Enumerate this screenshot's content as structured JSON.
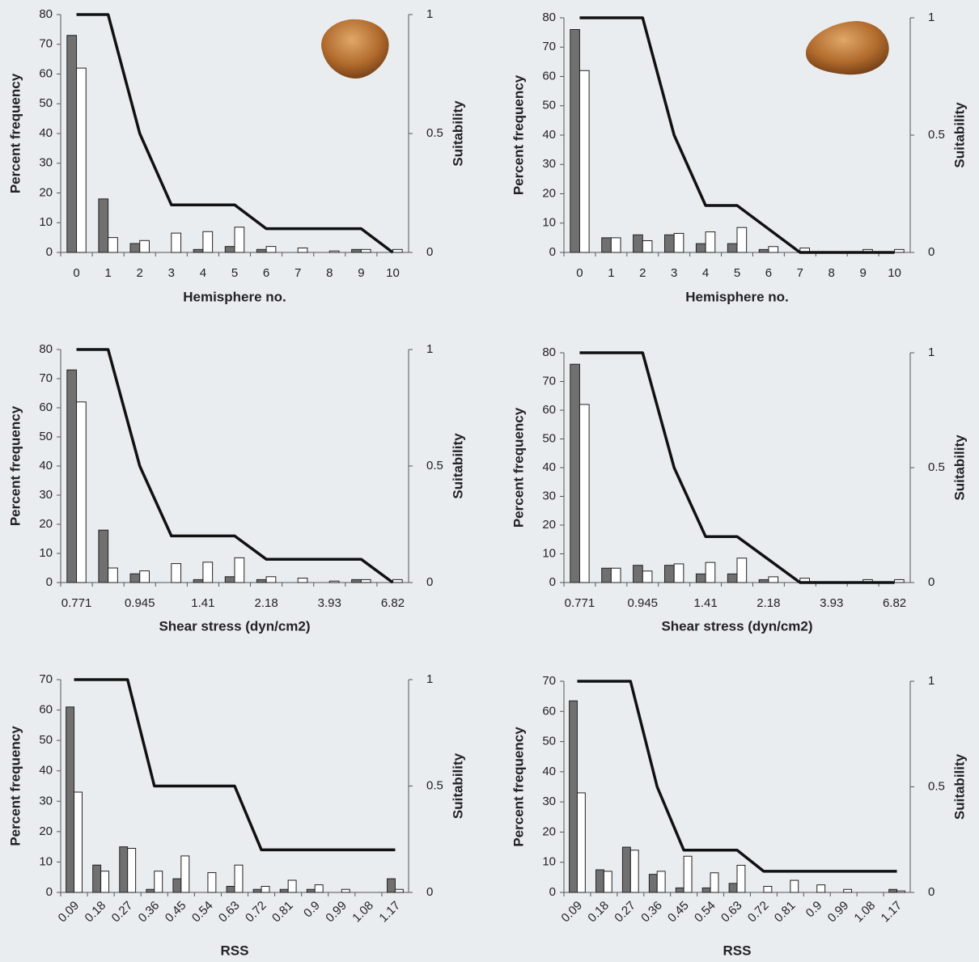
{
  "chart_data": [
    {
      "type": "bar",
      "xlabel": "Hemisphere no.",
      "ylabel": "Percent frequency",
      "y2label": "Suitability",
      "categories": [
        "0",
        "1",
        "2",
        "3",
        "4",
        "5",
        "6",
        "7",
        "8",
        "9",
        "10"
      ],
      "series": [
        {
          "color": "#707070",
          "values": [
            73,
            18,
            3,
            0,
            1,
            2,
            1,
            0,
            0,
            1,
            0
          ]
        },
        {
          "color": "#ffffff",
          "values": [
            62,
            5,
            4,
            6.5,
            7,
            8.5,
            2,
            1.5,
            0.5,
            1,
            1
          ]
        },
        {
          "type": "line",
          "axis": "y2",
          "color": "#111111",
          "values": [
            1,
            1,
            0.5,
            0.2,
            0.2,
            0.2,
            0.1,
            0.1,
            0.1,
            0.1,
            0
          ]
        }
      ],
      "ylim": [
        0,
        80
      ],
      "yticks": [
        0,
        10,
        20,
        30,
        40,
        50,
        60,
        70,
        80
      ],
      "y2lim": [
        0,
        1
      ],
      "y2ticks": [
        0,
        0.5,
        1
      ]
    },
    {
      "type": "bar",
      "xlabel": "Hemisphere no.",
      "ylabel": "Percent frequency",
      "y2label": "Suitability",
      "categories": [
        "0",
        "1",
        "2",
        "3",
        "4",
        "5",
        "6",
        "7",
        "8",
        "9",
        "10"
      ],
      "series": [
        {
          "color": "#707070",
          "values": [
            76,
            5,
            6,
            6,
            3,
            3,
            1,
            0,
            0,
            0,
            0
          ]
        },
        {
          "color": "#ffffff",
          "values": [
            62,
            5,
            4,
            6.5,
            7,
            8.5,
            2,
            1.5,
            0,
            1,
            1
          ]
        },
        {
          "type": "line",
          "axis": "y2",
          "color": "#111111",
          "values": [
            1,
            1,
            1,
            0.5,
            0.2,
            0.2,
            0.1,
            0,
            0,
            0,
            0
          ]
        }
      ],
      "ylim": [
        0,
        80
      ],
      "yticks": [
        0,
        10,
        20,
        30,
        40,
        50,
        60,
        70,
        80
      ],
      "y2lim": [
        0,
        1
      ],
      "y2ticks": [
        0,
        0.5,
        1
      ]
    },
    {
      "type": "bar",
      "xlabel": "Shear stress (dyn/cm2)",
      "ylabel": "Percent frequency",
      "y2label": "Suitability",
      "categories": [
        "0.771",
        null,
        "0.945",
        null,
        "1.41",
        null,
        "2.18",
        null,
        "3.93",
        null,
        "6.82"
      ],
      "series": [
        {
          "color": "#707070",
          "values": [
            73,
            18,
            3,
            0,
            1,
            2,
            1,
            0,
            0,
            1,
            0
          ]
        },
        {
          "color": "#ffffff",
          "values": [
            62,
            5,
            4,
            6.5,
            7,
            8.5,
            2,
            1.5,
            0.5,
            1,
            1
          ]
        },
        {
          "type": "line",
          "axis": "y2",
          "color": "#111111",
          "values": [
            1,
            1,
            0.5,
            0.2,
            0.2,
            0.2,
            0.1,
            0.1,
            0.1,
            0.1,
            0
          ]
        }
      ],
      "ylim": [
        0,
        80
      ],
      "yticks": [
        0,
        10,
        20,
        30,
        40,
        50,
        60,
        70,
        80
      ],
      "y2lim": [
        0,
        1
      ],
      "y2ticks": [
        0,
        0.5,
        1
      ]
    },
    {
      "type": "bar",
      "xlabel": "Shear stress (dyn/cm2)",
      "ylabel": "Percent frequency",
      "y2label": "Suitability",
      "categories": [
        "0.771",
        null,
        "0.945",
        null,
        "1.41",
        null,
        "2.18",
        null,
        "3.93",
        null,
        "6.82"
      ],
      "series": [
        {
          "color": "#707070",
          "values": [
            76,
            5,
            6,
            6,
            3,
            3,
            1,
            0,
            0,
            0,
            0
          ]
        },
        {
          "color": "#ffffff",
          "values": [
            62,
            5,
            4,
            6.5,
            7,
            8.5,
            2,
            1.5,
            0,
            1,
            1
          ]
        },
        {
          "type": "line",
          "axis": "y2",
          "color": "#111111",
          "values": [
            1,
            1,
            1,
            0.5,
            0.2,
            0.2,
            0.1,
            0,
            0,
            0,
            0
          ]
        }
      ],
      "ylim": [
        0,
        80
      ],
      "yticks": [
        0,
        10,
        20,
        30,
        40,
        50,
        60,
        70,
        80
      ],
      "y2lim": [
        0,
        1
      ],
      "y2ticks": [
        0,
        0.5,
        1
      ]
    },
    {
      "type": "bar",
      "xlabel": "RSS",
      "ylabel": "Percent frequency",
      "y2label": "Suitability",
      "xtick_rotation": -45,
      "categories": [
        "0.09",
        "0.18",
        "0.27",
        "0.36",
        "0.45",
        "0.54",
        "0.63",
        "0.72",
        "0.81",
        "0.9",
        "0.99",
        "1.08",
        "1.17"
      ],
      "series": [
        {
          "color": "#707070",
          "values": [
            61,
            9,
            15,
            1,
            4.5,
            0,
            2,
            1,
            1,
            1,
            0,
            0,
            4.5
          ]
        },
        {
          "color": "#ffffff",
          "values": [
            33,
            7,
            14.5,
            7,
            12,
            6.5,
            9,
            2,
            4,
            2.5,
            1,
            0,
            1
          ]
        },
        {
          "type": "line",
          "axis": "y2",
          "color": "#111111",
          "values": [
            1,
            1,
            1,
            0.5,
            0.5,
            0.5,
            0.5,
            0.2,
            0.2,
            0.2,
            0.2,
            0.2,
            0.2
          ]
        }
      ],
      "ylim": [
        0,
        70
      ],
      "yticks": [
        0,
        10,
        20,
        30,
        40,
        50,
        60,
        70
      ],
      "y2lim": [
        0,
        1
      ],
      "y2ticks": [
        0,
        0.5,
        1
      ]
    },
    {
      "type": "bar",
      "xlabel": "RSS",
      "ylabel": "Percent frequency",
      "y2label": "Suitability",
      "xtick_rotation": -45,
      "categories": [
        "0.09",
        "0.18",
        "0.27",
        "0.36",
        "0.45",
        "0.54",
        "0.63",
        "0.72",
        "0.81",
        "0.9",
        "0.99",
        "1.08",
        "1.17"
      ],
      "series": [
        {
          "color": "#707070",
          "values": [
            63.5,
            7.5,
            15,
            6,
            1.5,
            1.5,
            3,
            0,
            0,
            0,
            0,
            0,
            1
          ]
        },
        {
          "color": "#ffffff",
          "values": [
            33,
            7,
            14,
            7,
            12,
            6.5,
            9,
            2,
            4,
            2.5,
            1,
            0,
            0.5
          ]
        },
        {
          "type": "line",
          "axis": "y2",
          "color": "#111111",
          "values": [
            1,
            1,
            1,
            0.5,
            0.2,
            0.2,
            0.2,
            0.1,
            0.1,
            0.1,
            0.1,
            0.1,
            0.1
          ]
        }
      ],
      "ylim": [
        0,
        70
      ],
      "yticks": [
        0,
        10,
        20,
        30,
        40,
        50,
        60,
        70
      ],
      "y2lim": [
        0,
        1
      ],
      "y2ticks": [
        0,
        0.5,
        1
      ]
    }
  ]
}
